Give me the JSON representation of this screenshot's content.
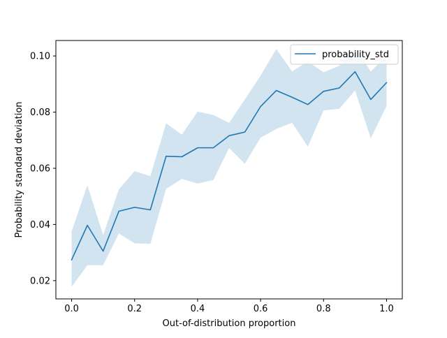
{
  "chart_data": {
    "type": "line",
    "xlabel": "Out-of-distribution proportion",
    "ylabel": "Probability standard deviation",
    "xlim": [
      -0.05,
      1.05
    ],
    "ylim": [
      0.0135,
      0.1055
    ],
    "xticks": [
      0.0,
      0.2,
      0.4,
      0.6,
      0.8,
      1.0
    ],
    "xtick_labels": [
      "0.0",
      "0.2",
      "0.4",
      "0.6",
      "0.8",
      "1.0"
    ],
    "yticks": [
      0.02,
      0.04,
      0.06,
      0.08,
      0.1
    ],
    "ytick_labels": [
      "0.02",
      "0.04",
      "0.06",
      "0.08",
      "0.10"
    ],
    "grid": false,
    "legend_position": "upper right",
    "x": [
      0.0,
      0.05,
      0.1,
      0.15,
      0.2,
      0.25,
      0.3,
      0.35,
      0.4,
      0.45,
      0.5,
      0.55,
      0.6,
      0.65,
      0.7,
      0.75,
      0.8,
      0.85,
      0.9,
      0.95,
      1.0
    ],
    "series": [
      {
        "name": "probability_std",
        "color": "#1f77b4",
        "band_color": "#1f77b4",
        "values": [
          0.0274,
          0.0397,
          0.0305,
          0.0447,
          0.0461,
          0.0452,
          0.0643,
          0.0641,
          0.0673,
          0.0673,
          0.0716,
          0.0729,
          0.082,
          0.0877,
          0.0853,
          0.0827,
          0.0874,
          0.0886,
          0.0944,
          0.0845,
          0.0905
        ],
        "band_lower": [
          0.0178,
          0.0255,
          0.0255,
          0.0368,
          0.0333,
          0.0331,
          0.0527,
          0.0562,
          0.0546,
          0.0558,
          0.0672,
          0.0616,
          0.0709,
          0.074,
          0.0762,
          0.0677,
          0.0806,
          0.0812,
          0.0877,
          0.0707,
          0.0822
        ],
        "band_upper": [
          0.0375,
          0.054,
          0.0362,
          0.0525,
          0.059,
          0.0572,
          0.076,
          0.072,
          0.0802,
          0.079,
          0.0762,
          0.0845,
          0.093,
          0.1025,
          0.0945,
          0.098,
          0.0942,
          0.0965,
          0.103,
          0.0945,
          0.1
        ]
      }
    ]
  }
}
